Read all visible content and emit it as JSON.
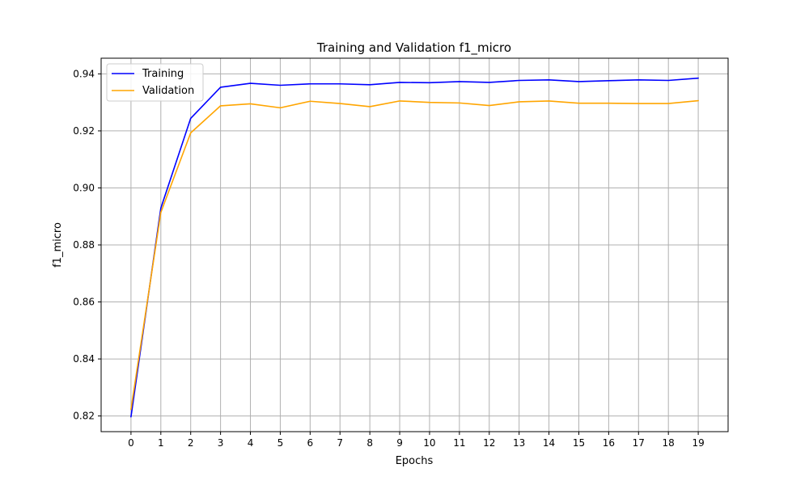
{
  "chart_data": {
    "type": "line",
    "title": "Training and Validation f1_micro",
    "xlabel": "Epochs",
    "ylabel": "f1_micro",
    "x": [
      0,
      1,
      2,
      3,
      4,
      5,
      6,
      7,
      8,
      9,
      10,
      11,
      12,
      13,
      14,
      15,
      16,
      17,
      18,
      19
    ],
    "xlim": [
      -1,
      20
    ],
    "ylim": [
      0.8145,
      0.9455
    ],
    "yticks": [
      0.82,
      0.84,
      0.86,
      0.88,
      0.9,
      0.92,
      0.94
    ],
    "ytick_labels": [
      "0.82",
      "0.84",
      "0.86",
      "0.88",
      "0.90",
      "0.92",
      "0.94"
    ],
    "grid": true,
    "legend_position": "top-left",
    "series": [
      {
        "name": "Training",
        "color": "#0000ff",
        "values": [
          0.8197,
          0.8929,
          0.9244,
          0.9353,
          0.9367,
          0.936,
          0.9365,
          0.9365,
          0.9362,
          0.937,
          0.9369,
          0.9373,
          0.937,
          0.9377,
          0.9379,
          0.9373,
          0.9376,
          0.9379,
          0.9377,
          0.9385
        ]
      },
      {
        "name": "Validation",
        "color": "#ffa500",
        "values": [
          0.8223,
          0.8914,
          0.9193,
          0.9288,
          0.9295,
          0.9281,
          0.9304,
          0.9296,
          0.9285,
          0.9305,
          0.93,
          0.9298,
          0.9289,
          0.9302,
          0.9305,
          0.9297,
          0.9297,
          0.9296,
          0.9296,
          0.9306
        ]
      }
    ]
  }
}
